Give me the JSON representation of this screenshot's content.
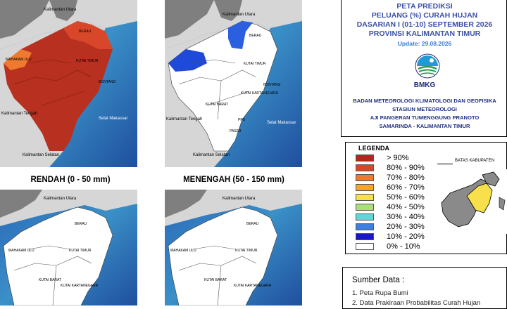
{
  "panels": [
    {
      "id": "rendah",
      "caption": "RENDAH (0 - 50 mm)",
      "labels": {
        "north": "Kalimantan Utara",
        "west": "Kalimantan Tengah",
        "south": "Kalimantan Selatan",
        "strait": "Selat Makassar",
        "mahakam": "MAHAKAM ULU",
        "berau": "BERAU",
        "kutim": "KUTAI TIMUR",
        "bontang": "BONTANG"
      }
    },
    {
      "id": "menengah",
      "caption": "MENENGAH (50 - 150 mm)",
      "labels": {
        "north": "Kalimantan Utara",
        "west": "Kalimantan Tengah",
        "south": "Kalimantan Selatan",
        "strait": "Selat Makassar",
        "berau": "BERAU",
        "kutim": "KUTAI TIMUR",
        "bontang": "BONTANG",
        "kukar": "KUTAI KARTANEGARA",
        "kubar": "KUTAI BARAT",
        "paser": "PASER",
        "ppu": "PPU"
      }
    },
    {
      "id": "bottom-left",
      "labels": {
        "north": "Kalimantan Utara",
        "mahakam": "MAHAKAM ULU",
        "berau": "BERAU",
        "kutim": "KUTAI TIMUR",
        "kubar": "KUTAI BARAT",
        "kukar": "KUTAI KARTANEGARA"
      }
    },
    {
      "id": "bottom-right",
      "labels": {
        "north": "Kalimantan Utara",
        "mahakam": "MAHAKAM ULU",
        "berau": "BERAU",
        "kutim": "KUTAI TIMUR",
        "kubar": "KUTAI BARAT",
        "kukar": "KUTAI KARTANEGARA"
      }
    }
  ],
  "info": {
    "title_lines": [
      "PETA PREDIKSI",
      "PELUANG (%) CURAH HUJAN",
      "DASARIAN I (01-10) SEPTEMBER 2026",
      "PROVINSI KALIMANTAN TIMUR"
    ],
    "update": "Update: 29.08.2026",
    "logo_text": "BMKG",
    "agency_lines": [
      "BADAN METEOROLOGI KLIMATOLOGI DAN GEOFISIKA",
      "STASIUN METEOROLOGI",
      "AJI PANGERAN TUMENGGUNG PRANOTO",
      "SAMARINDA - KALIMANTAN TIMUR"
    ]
  },
  "legend": {
    "title": "LEGENDA",
    "items": [
      {
        "label": "> 90%",
        "color": "#b3261e"
      },
      {
        "label": "80% - 90%",
        "color": "#d9472b"
      },
      {
        "label": "70% - 80%",
        "color": "#ee7a2f"
      },
      {
        "label": "60% - 70%",
        "color": "#f5a623"
      },
      {
        "label": "50% - 60%",
        "color": "#f7e04b"
      },
      {
        "label": "40% - 50%",
        "color": "#a8e07a"
      },
      {
        "label": "30% - 40%",
        "color": "#5fd6d8"
      },
      {
        "label": "20% - 30%",
        "color": "#3f7fe0"
      },
      {
        "label": "10% - 20%",
        "color": "#1717c8"
      },
      {
        "label": "0% - 10%",
        "color": "#ffffff"
      }
    ],
    "boundary_label": "BATAS KABUPATEN"
  },
  "sources": {
    "title": "Sumber Data :",
    "items": [
      "1. Peta Rupa Bumi",
      "2. Data Prakiraan Probabilitas Curah Hujan"
    ]
  },
  "colors": {
    "sea_dark": "#1f4f9e",
    "sea_light": "#6fc0d8",
    "land_neighbor": "#7f7f7f",
    "land_outside": "#d6d6d6"
  }
}
